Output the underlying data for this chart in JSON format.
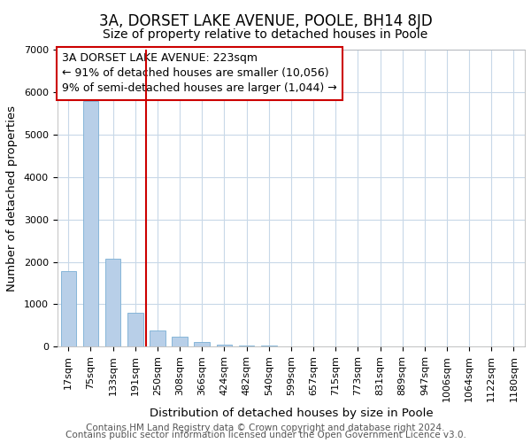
{
  "title": "3A, DORSET LAKE AVENUE, POOLE, BH14 8JD",
  "subtitle": "Size of property relative to detached houses in Poole",
  "xlabel": "Distribution of detached houses by size in Poole",
  "ylabel": "Number of detached properties",
  "bar_labels": [
    "17sqm",
    "75sqm",
    "133sqm",
    "191sqm",
    "250sqm",
    "308sqm",
    "366sqm",
    "424sqm",
    "482sqm",
    "540sqm",
    "599sqm",
    "657sqm",
    "715sqm",
    "773sqm",
    "831sqm",
    "889sqm",
    "947sqm",
    "1006sqm",
    "1064sqm",
    "1122sqm",
    "1180sqm"
  ],
  "bar_values": [
    1780,
    5780,
    2070,
    810,
    375,
    235,
    110,
    60,
    35,
    20,
    10,
    5,
    3,
    0,
    0,
    0,
    0,
    0,
    0,
    0,
    0
  ],
  "bar_color": "#b8cfe8",
  "bar_edge_color": "#7aafd4",
  "vline_x": 3.5,
  "vline_color": "#cc0000",
  "annotation_lines": [
    "3A DORSET LAKE AVENUE: 223sqm",
    "← 91% of detached houses are smaller (10,056)",
    "9% of semi-detached houses are larger (1,044) →"
  ],
  "ylim": [
    0,
    7000
  ],
  "yticks": [
    0,
    1000,
    2000,
    3000,
    4000,
    5000,
    6000,
    7000
  ],
  "footer1": "Contains HM Land Registry data © Crown copyright and database right 2024.",
  "footer2": "Contains public sector information licensed under the Open Government Licence v3.0.",
  "bg_color": "#ffffff",
  "grid_color": "#c8d8e8",
  "title_fontsize": 12,
  "subtitle_fontsize": 10,
  "axis_label_fontsize": 9.5,
  "tick_fontsize": 8,
  "annotation_fontsize": 9,
  "footer_fontsize": 7.5
}
